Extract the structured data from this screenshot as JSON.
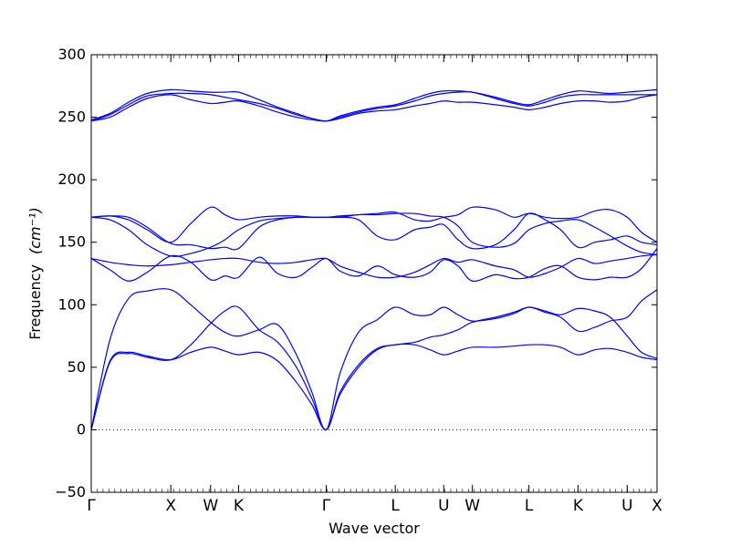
{
  "chart_data": {
    "type": "line",
    "title": "",
    "xlabel": "Wave vector",
    "ylabel": "Frequency",
    "ylabel_unit": "(cm⁻¹)",
    "ylim": [
      -50,
      300
    ],
    "y_ticks": [
      -50,
      0,
      50,
      100,
      150,
      200,
      250,
      300
    ],
    "grid": false,
    "line_color": "#0000ff",
    "zero_line": {
      "y": 0,
      "style": "dotted",
      "color": "#000000"
    },
    "xlim": [
      0,
      9.1
    ],
    "x_ticks": [
      {
        "x": 0.0,
        "label": "Γ"
      },
      {
        "x": 1.28,
        "label": "X"
      },
      {
        "x": 1.92,
        "label": "W"
      },
      {
        "x": 2.37,
        "label": "K"
      },
      {
        "x": 3.78,
        "label": "Γ"
      },
      {
        "x": 4.89,
        "label": "L"
      },
      {
        "x": 5.67,
        "label": "U"
      },
      {
        "x": 6.13,
        "label": "W"
      },
      {
        "x": 7.04,
        "label": "L"
      },
      {
        "x": 7.83,
        "label": "K"
      },
      {
        "x": 8.62,
        "label": "U"
      },
      {
        "x": 9.1,
        "label": "X"
      }
    ],
    "series": [
      {
        "x": [
          0.0,
          0.3,
          0.6,
          0.9,
          1.28,
          1.6,
          1.92,
          2.15,
          2.37,
          2.7,
          3.0,
          3.3,
          3.55,
          3.78,
          4.0,
          4.3,
          4.6,
          4.89,
          5.2,
          5.45,
          5.67,
          5.9,
          6.13,
          6.5,
          6.8,
          7.04,
          7.3,
          7.55,
          7.83,
          8.1,
          8.35,
          8.62,
          8.85,
          9.1
        ],
        "y": [
          0,
          55,
          62,
          59,
          56,
          62,
          66,
          63,
          60,
          62,
          55,
          38,
          20,
          0,
          28,
          50,
          64,
          68,
          68,
          64,
          60,
          63,
          66,
          66,
          67,
          68,
          68,
          66,
          60,
          64,
          65,
          62,
          58,
          56
        ]
      },
      {
        "x": [
          0.0,
          0.3,
          0.6,
          0.9,
          1.28,
          1.6,
          1.92,
          2.15,
          2.37,
          2.7,
          3.0,
          3.3,
          3.55,
          3.78,
          4.0,
          4.3,
          4.6,
          4.89,
          5.2,
          5.45,
          5.67,
          5.9,
          6.13,
          6.5,
          6.8,
          7.04,
          7.3,
          7.55,
          7.83,
          8.1,
          8.35,
          8.62,
          8.85,
          9.1
        ],
        "y": [
          0,
          54,
          61,
          58,
          56,
          68,
          85,
          95,
          98,
          80,
          70,
          50,
          25,
          0,
          30,
          52,
          65,
          68,
          70,
          74,
          76,
          80,
          86,
          90,
          94,
          98,
          95,
          92,
          97,
          95,
          90,
          75,
          62,
          57
        ]
      },
      {
        "x": [
          0.0,
          0.3,
          0.6,
          0.9,
          1.28,
          1.6,
          1.92,
          2.15,
          2.37,
          2.7,
          3.0,
          3.3,
          3.55,
          3.78,
          4.0,
          4.3,
          4.6,
          4.89,
          5.2,
          5.45,
          5.67,
          5.9,
          6.13,
          6.5,
          6.8,
          7.04,
          7.3,
          7.55,
          7.83,
          8.1,
          8.35,
          8.62,
          8.85,
          9.1
        ],
        "y": [
          0,
          72,
          105,
          111,
          112,
          100,
          86,
          78,
          75,
          80,
          84,
          60,
          30,
          0,
          45,
          78,
          88,
          98,
          92,
          92,
          98,
          92,
          87,
          89,
          93,
          98,
          94,
          90,
          79,
          82,
          87,
          90,
          103,
          112
        ]
      },
      {
        "x": [
          0.0,
          0.3,
          0.6,
          0.9,
          1.28,
          1.6,
          1.92,
          2.15,
          2.37,
          2.7,
          3.0,
          3.3,
          3.55,
          3.78,
          4.0,
          4.3,
          4.6,
          4.89,
          5.2,
          5.45,
          5.67,
          5.9,
          6.13,
          6.5,
          6.8,
          7.04,
          7.3,
          7.55,
          7.83,
          8.1,
          8.35,
          8.62,
          8.85,
          9.1
        ],
        "y": [
          137,
          128,
          119,
          126,
          139,
          134,
          120,
          123,
          122,
          138,
          125,
          122,
          130,
          137,
          127,
          123,
          131,
          124,
          122,
          126,
          136,
          131,
          119,
          124,
          121,
          122,
          129,
          131,
          122,
          120,
          122,
          122,
          129,
          145
        ]
      },
      {
        "x": [
          0.0,
          0.3,
          0.6,
          0.9,
          1.28,
          1.6,
          1.92,
          2.15,
          2.37,
          2.7,
          3.0,
          3.3,
          3.55,
          3.78,
          4.0,
          4.3,
          4.6,
          4.89,
          5.2,
          5.45,
          5.67,
          5.9,
          6.13,
          6.5,
          6.8,
          7.04,
          7.3,
          7.55,
          7.83,
          8.1,
          8.35,
          8.62,
          8.85,
          9.1
        ],
        "y": [
          137,
          134,
          132,
          131,
          132,
          134,
          136,
          137,
          137,
          134,
          133,
          134,
          136,
          137,
          131,
          126,
          122,
          122,
          126,
          132,
          137,
          134,
          136,
          131,
          128,
          122,
          125,
          130,
          137,
          133,
          135,
          137,
          139,
          140
        ]
      },
      {
        "x": [
          0.0,
          0.3,
          0.6,
          0.9,
          1.28,
          1.6,
          1.92,
          2.15,
          2.37,
          2.7,
          3.0,
          3.3,
          3.55,
          3.78,
          4.0,
          4.3,
          4.6,
          4.89,
          5.2,
          5.45,
          5.67,
          5.9,
          6.13,
          6.5,
          6.8,
          7.04,
          7.3,
          7.55,
          7.83,
          8.1,
          8.35,
          8.62,
          8.85,
          9.1
        ],
        "y": [
          170,
          171,
          170,
          162,
          149,
          148,
          145,
          146,
          145,
          162,
          168,
          170,
          170,
          170,
          170,
          168,
          155,
          152,
          160,
          162,
          164,
          152,
          145,
          148,
          160,
          173,
          168,
          160,
          146,
          150,
          152,
          155,
          150,
          148
        ]
      },
      {
        "x": [
          0.0,
          0.3,
          0.6,
          0.9,
          1.28,
          1.6,
          1.92,
          2.15,
          2.37,
          2.7,
          3.0,
          3.3,
          3.55,
          3.78,
          4.0,
          4.3,
          4.6,
          4.89,
          5.2,
          5.45,
          5.67,
          5.9,
          6.13,
          6.5,
          6.8,
          7.04,
          7.3,
          7.55,
          7.83,
          8.1,
          8.35,
          8.62,
          8.85,
          9.1
        ],
        "y": [
          170,
          171,
          168,
          160,
          150,
          165,
          178,
          172,
          168,
          170,
          171,
          171,
          170,
          170,
          171,
          172,
          173,
          174,
          168,
          167,
          170,
          172,
          178,
          176,
          170,
          173,
          170,
          169,
          170,
          175,
          176,
          170,
          158,
          150
        ]
      },
      {
        "x": [
          0.0,
          0.3,
          0.6,
          0.9,
          1.28,
          1.6,
          1.92,
          2.15,
          2.37,
          2.7,
          3.0,
          3.3,
          3.55,
          3.78,
          4.0,
          4.3,
          4.6,
          4.89,
          5.2,
          5.45,
          5.67,
          5.9,
          6.13,
          6.5,
          6.8,
          7.04,
          7.3,
          7.55,
          7.83,
          8.1,
          8.35,
          8.62,
          8.85,
          9.1
        ],
        "y": [
          170,
          168,
          160,
          148,
          139,
          141,
          146,
          152,
          160,
          167,
          169,
          170,
          170,
          170,
          170,
          172,
          172,
          173,
          173,
          171,
          170,
          163,
          150,
          146,
          149,
          160,
          165,
          167,
          168,
          162,
          155,
          147,
          142,
          140
        ]
      },
      {
        "x": [
          0.0,
          0.3,
          0.6,
          0.9,
          1.28,
          1.6,
          1.92,
          2.15,
          2.37,
          2.7,
          3.0,
          3.3,
          3.55,
          3.78,
          4.0,
          4.3,
          4.6,
          4.89,
          5.2,
          5.45,
          5.67,
          5.9,
          6.13,
          6.5,
          6.8,
          7.04,
          7.3,
          7.55,
          7.83,
          8.1,
          8.35,
          8.62,
          8.85,
          9.1
        ],
        "y": [
          247,
          250,
          258,
          265,
          268,
          264,
          261,
          262,
          263,
          259,
          254,
          250,
          248,
          247,
          249,
          253,
          255,
          256,
          259,
          261,
          263,
          262,
          262,
          260,
          258,
          256,
          258,
          261,
          263,
          263,
          262,
          263,
          266,
          268
        ]
      },
      {
        "x": [
          0.0,
          0.3,
          0.6,
          0.9,
          1.28,
          1.6,
          1.92,
          2.15,
          2.37,
          2.7,
          3.0,
          3.3,
          3.55,
          3.78,
          4.0,
          4.3,
          4.6,
          4.89,
          5.2,
          5.45,
          5.67,
          5.9,
          6.13,
          6.5,
          6.8,
          7.04,
          7.3,
          7.55,
          7.83,
          8.1,
          8.35,
          8.62,
          8.85,
          9.1
        ],
        "y": [
          247,
          252,
          260,
          267,
          269,
          269,
          268,
          266,
          264,
          261,
          257,
          252,
          249,
          247,
          250,
          254,
          257,
          259,
          263,
          267,
          269,
          270,
          270,
          265,
          261,
          259,
          262,
          266,
          268,
          268,
          268,
          268,
          268,
          268
        ]
      },
      {
        "x": [
          0.0,
          0.3,
          0.6,
          0.9,
          1.28,
          1.6,
          1.92,
          2.15,
          2.37,
          2.7,
          3.0,
          3.3,
          3.55,
          3.78,
          4.0,
          4.3,
          4.6,
          4.89,
          5.2,
          5.45,
          5.67,
          5.9,
          6.13,
          6.5,
          6.8,
          7.04,
          7.3,
          7.55,
          7.83,
          8.1,
          8.35,
          8.62,
          8.85,
          9.1
        ],
        "y": [
          248,
          253,
          262,
          269,
          272,
          271,
          270,
          270,
          270,
          264,
          258,
          253,
          249,
          247,
          251,
          255,
          258,
          260,
          265,
          269,
          271,
          271,
          270,
          266,
          262,
          260,
          264,
          268,
          271,
          270,
          269,
          270,
          271,
          272
        ]
      }
    ]
  }
}
